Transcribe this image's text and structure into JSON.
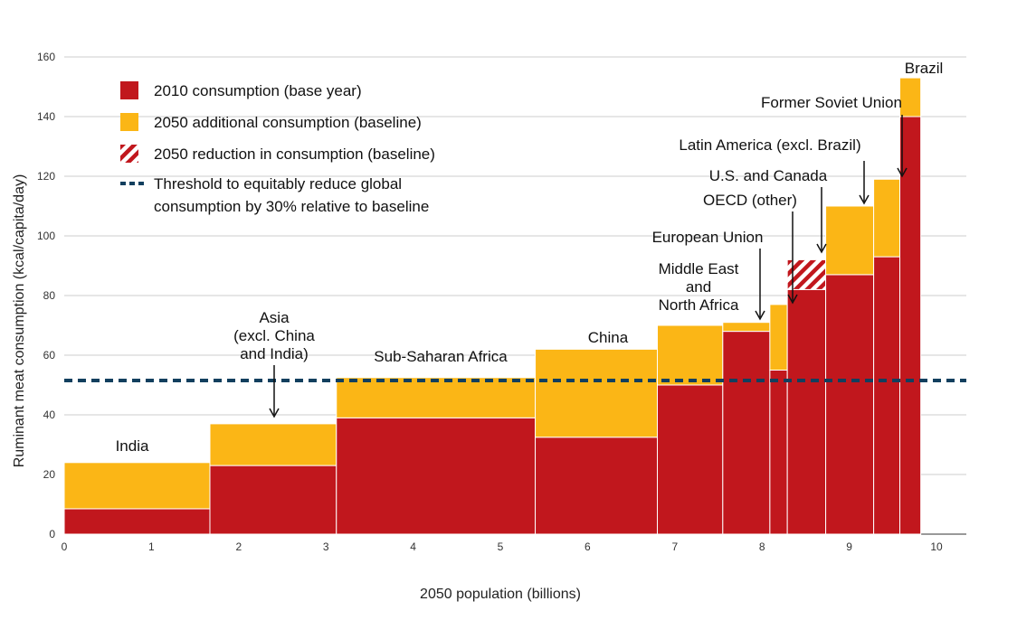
{
  "chart_data": {
    "type": "bar",
    "subtype": "variable-width stacked bar (Marimekko)",
    "xlabel": "2050 population (billions)",
    "ylabel": "Ruminant meat consumption (kcal/capita/day)",
    "xlim": [
      0,
      10
    ],
    "ylim": [
      0,
      160
    ],
    "x_ticks": [
      0,
      1,
      2,
      3,
      4,
      5,
      6,
      7,
      8,
      9,
      10
    ],
    "y_ticks": [
      0,
      20,
      40,
      60,
      80,
      100,
      120,
      140,
      160
    ],
    "grid": "horizontal",
    "legend_position": "top-left",
    "legend": [
      {
        "key": "base",
        "label": "2010 consumption (base year)",
        "color": "#c1171d"
      },
      {
        "key": "add",
        "label": "2050 additional consumption (baseline)",
        "color": "#fbb616"
      },
      {
        "key": "red",
        "label": "2050 reduction in consumption (baseline)",
        "color": "#c1171d"
      },
      {
        "key": "threshold",
        "label_lines": [
          "Threshold to equitably reduce global",
          "consumption by 30% relative to baseline"
        ],
        "color": "#123f5e"
      }
    ],
    "threshold": 51.5,
    "regions": [
      {
        "name": "India",
        "x0": 0,
        "x1": 1.67,
        "base_2010": 8.5,
        "baseline_2050": 24
      },
      {
        "name": "Asia (excl. China and India)",
        "x0": 1.67,
        "x1": 3.12,
        "base_2010": 23,
        "baseline_2050": 37
      },
      {
        "name": "Sub-Saharan Africa",
        "x0": 3.12,
        "x1": 5.4,
        "base_2010": 39,
        "baseline_2050": 52.5
      },
      {
        "name": "China",
        "x0": 5.4,
        "x1": 6.8,
        "base_2010": 32.5,
        "baseline_2050": 62
      },
      {
        "name": "Middle East and North Africa",
        "x0": 6.8,
        "x1": 7.55,
        "base_2010": 50,
        "baseline_2050": 70
      },
      {
        "name": "European Union",
        "x0": 7.55,
        "x1": 8.09,
        "base_2010": 68,
        "baseline_2050": 71
      },
      {
        "name": "OECD (other)",
        "x0": 8.09,
        "x1": 8.29,
        "base_2010": 55,
        "baseline_2050": 77
      },
      {
        "name": "U.S. and Canada",
        "x0": 8.29,
        "x1": 8.73,
        "base_2010": 92,
        "baseline_2050": 82
      },
      {
        "name": "Latin America (excl. Brazil)",
        "x0": 8.73,
        "x1": 9.28,
        "base_2010": 87,
        "baseline_2050": 110
      },
      {
        "name": "Former Soviet Union",
        "x0": 9.28,
        "x1": 9.58,
        "base_2010": 93,
        "baseline_2050": 119
      },
      {
        "name": "Brazil",
        "x0": 9.58,
        "x1": 9.82,
        "base_2010": 140,
        "baseline_2050": 153
      }
    ]
  },
  "labels": {
    "india": "India",
    "asia_1": "Asia",
    "asia_2": "(excl. China",
    "asia_3": "and India)",
    "ssa": "Sub-Saharan Africa",
    "china": "China",
    "mena_1": "Middle East",
    "mena_2": "and",
    "mena_3": "North Africa",
    "eu": "European Union",
    "oecd": "OECD (other)",
    "usc": "U.S. and Canada",
    "latam": "Latin America (excl. Brazil)",
    "fsu": "Former Soviet Union",
    "brazil": "Brazil"
  }
}
